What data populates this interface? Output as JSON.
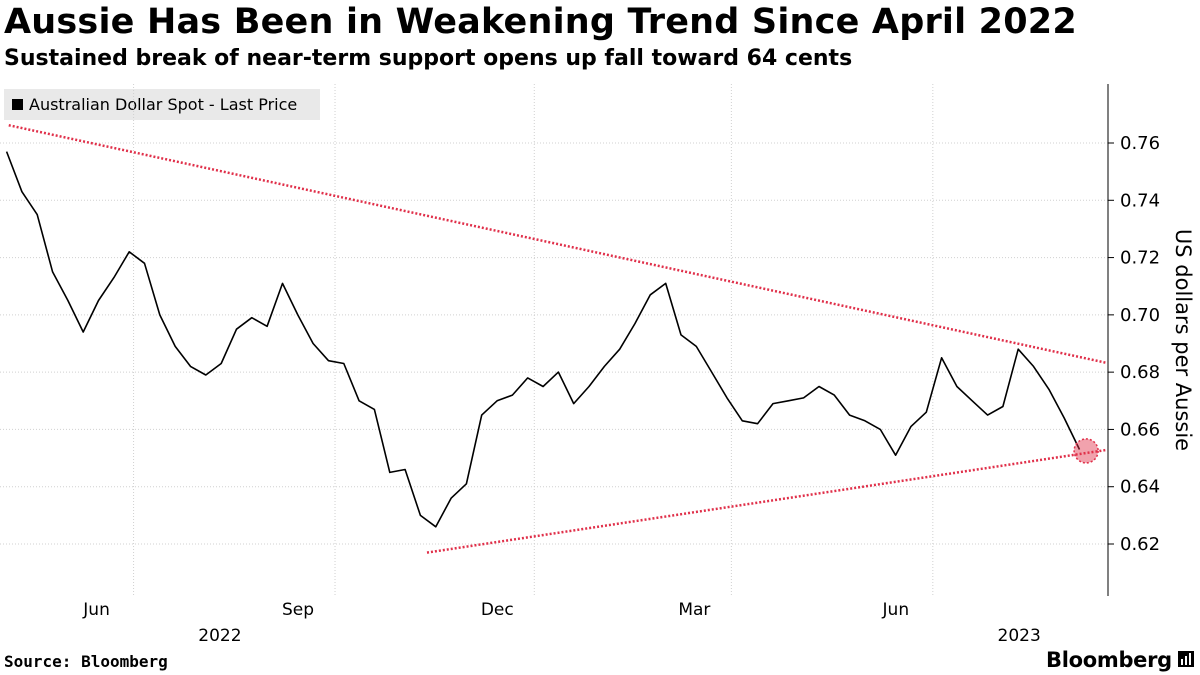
{
  "title": "Aussie Has Been in Weakening Trend Since April 2022",
  "subtitle": "Sustained break of near-term support opens up fall toward 64 cents",
  "legend": {
    "label": "Australian Dollar Spot - Last Price"
  },
  "source": "Source: Bloomberg",
  "brand": "Bloomberg",
  "colors": {
    "price": "#000000",
    "trendline": "#e0304a",
    "grid": "#d0d0d0"
  },
  "chart_data": {
    "type": "line",
    "series": [
      {
        "name": "Australian Dollar Spot - Last Price",
        "x": [
          "2022-04-04",
          "2022-04-11",
          "2022-04-18",
          "2022-04-25",
          "2022-05-02",
          "2022-05-09",
          "2022-05-16",
          "2022-05-23",
          "2022-05-30",
          "2022-06-06",
          "2022-06-13",
          "2022-06-20",
          "2022-06-27",
          "2022-07-04",
          "2022-07-11",
          "2022-07-18",
          "2022-07-25",
          "2022-08-01",
          "2022-08-08",
          "2022-08-15",
          "2022-08-22",
          "2022-08-29",
          "2022-09-05",
          "2022-09-12",
          "2022-09-19",
          "2022-09-26",
          "2022-10-03",
          "2022-10-10",
          "2022-10-17",
          "2022-10-24",
          "2022-10-31",
          "2022-11-07",
          "2022-11-14",
          "2022-11-21",
          "2022-11-28",
          "2022-12-05",
          "2022-12-12",
          "2022-12-19",
          "2022-12-26",
          "2023-01-02",
          "2023-01-09",
          "2023-01-16",
          "2023-01-23",
          "2023-01-30",
          "2023-02-06",
          "2023-02-13",
          "2023-02-20",
          "2023-02-27",
          "2023-03-06",
          "2023-03-13",
          "2023-03-20",
          "2023-03-27",
          "2023-04-03",
          "2023-04-10",
          "2023-04-17",
          "2023-04-24",
          "2023-05-01",
          "2023-05-08",
          "2023-05-15",
          "2023-05-22",
          "2023-05-29",
          "2023-06-05",
          "2023-06-12",
          "2023-06-19",
          "2023-06-26",
          "2023-07-03",
          "2023-07-10",
          "2023-07-17",
          "2023-07-24",
          "2023-07-31",
          "2023-08-07"
        ],
        "values": [
          0.757,
          0.743,
          0.735,
          0.715,
          0.705,
          0.694,
          0.705,
          0.713,
          0.722,
          0.718,
          0.7,
          0.689,
          0.682,
          0.679,
          0.683,
          0.695,
          0.699,
          0.696,
          0.711,
          0.7,
          0.69,
          0.684,
          0.683,
          0.67,
          0.667,
          0.645,
          0.646,
          0.63,
          0.626,
          0.636,
          0.641,
          0.665,
          0.67,
          0.672,
          0.678,
          0.675,
          0.68,
          0.669,
          0.675,
          0.682,
          0.688,
          0.697,
          0.707,
          0.711,
          0.693,
          0.689,
          0.68,
          0.671,
          0.663,
          0.662,
          0.669,
          0.67,
          0.671,
          0.675,
          0.672,
          0.665,
          0.663,
          0.66,
          0.651,
          0.661,
          0.666,
          0.685,
          0.675,
          0.67,
          0.665,
          0.668,
          0.688,
          0.682,
          0.674,
          0.664,
          0.653
        ]
      }
    ],
    "trendlines": [
      {
        "from": [
          "2022-04-05",
          0.7662
        ],
        "to": [
          "2023-08-19",
          0.6833
        ]
      },
      {
        "from": [
          "2022-10-13",
          0.617
        ],
        "to": [
          "2023-08-19",
          0.6528
        ]
      }
    ],
    "highlight": {
      "x": "2023-08-10",
      "y": 0.6525
    },
    "x_ticks": [
      "Jun",
      "Sep",
      "Dec",
      "Mar",
      "Jun"
    ],
    "year_labels": [
      "2022",
      "2023"
    ],
    "ylabel": "US dollars per Aussie",
    "y_ticks": [
      0.62,
      0.64,
      0.66,
      0.68,
      0.7,
      0.72,
      0.74,
      0.76
    ],
    "ylim": [
      0.6,
      0.78
    ],
    "grid": true,
    "y_axis_side": "right",
    "legend_position": "top-left"
  }
}
